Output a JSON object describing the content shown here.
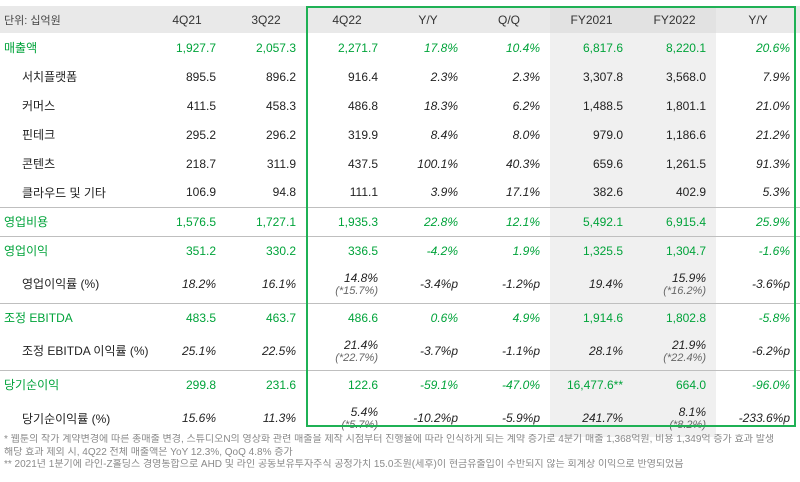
{
  "header": [
    "단위: 십억원",
    "4Q21",
    "3Q22",
    "4Q22",
    "Y/Y",
    "Q/Q",
    "FY2021",
    "FY2022",
    "Y/Y"
  ],
  "rows": [
    {
      "kind": "main",
      "cells": [
        "매출액",
        "1,927.7",
        "2,057.3",
        "2,271.7",
        "17.8%",
        "10.4%",
        "6,817.6",
        "8,220.1",
        "20.6%"
      ]
    },
    {
      "kind": "sub",
      "cells": [
        "서치플랫폼",
        "895.5",
        "896.2",
        "916.4",
        "2.3%",
        "2.3%",
        "3,307.8",
        "3,568.0",
        "7.9%"
      ]
    },
    {
      "kind": "sub",
      "cells": [
        "커머스",
        "411.5",
        "458.3",
        "486.8",
        "18.3%",
        "6.2%",
        "1,488.5",
        "1,801.1",
        "21.0%"
      ]
    },
    {
      "kind": "sub",
      "cells": [
        "핀테크",
        "295.2",
        "296.2",
        "319.9",
        "8.4%",
        "8.0%",
        "979.0",
        "1,186.6",
        "21.2%"
      ]
    },
    {
      "kind": "sub",
      "cells": [
        "콘텐츠",
        "218.7",
        "311.9",
        "437.5",
        "100.1%",
        "40.3%",
        "659.6",
        "1,261.5",
        "91.3%"
      ]
    },
    {
      "kind": "sub",
      "cells": [
        "클라우드 및 기타",
        "106.9",
        "94.8",
        "111.1",
        "3.9%",
        "17.1%",
        "382.6",
        "402.9",
        "5.3%"
      ]
    },
    {
      "kind": "main",
      "cells": [
        "영업비용",
        "1,576.5",
        "1,727.1",
        "1,935.3",
        "22.8%",
        "12.1%",
        "5,492.1",
        "6,915.4",
        "25.9%"
      ]
    },
    {
      "kind": "main",
      "cells": [
        "영업이익",
        "351.2",
        "330.2",
        "336.5",
        "-4.2%",
        "1.9%",
        "1,325.5",
        "1,304.7",
        "-1.6%"
      ]
    },
    {
      "kind": "sub",
      "cells": [
        "영업이익률 (%)",
        "18.2%",
        "16.1%",
        "14.8%",
        "-3.4%p",
        "-1.2%p",
        "19.4%",
        "15.9%",
        "-3.6%p"
      ],
      "notes": {
        "3": "(*15.7%)",
        "7": "(*16.2%)"
      }
    },
    {
      "kind": "main",
      "cells": [
        "조정 EBITDA",
        "483.5",
        "463.7",
        "486.6",
        "0.6%",
        "4.9%",
        "1,914.6",
        "1,802.8",
        "-5.8%"
      ]
    },
    {
      "kind": "sub",
      "cells": [
        "조정 EBITDA 이익률 (%)",
        "25.1%",
        "22.5%",
        "21.4%",
        "-3.7%p",
        "-1.1%p",
        "28.1%",
        "21.9%",
        "-6.2%p"
      ],
      "notes": {
        "3": "(*22.7%)",
        "7": "(*22.4%)"
      }
    },
    {
      "kind": "main",
      "cells": [
        "당기순이익",
        "299.8",
        "231.6",
        "122.6",
        "-59.1%",
        "-47.0%",
        "16,477.6**",
        "664.0",
        "-96.0%"
      ]
    },
    {
      "kind": "sub",
      "cells": [
        "당기순이익률 (%)",
        "15.6%",
        "11.3%",
        "5.4%",
        "-10.2%p",
        "-5.9%p",
        "241.7%",
        "8.1%",
        "-233.6%p"
      ],
      "notes": {
        "3": "(*5.7%)",
        "7": "(*8.2%)"
      }
    }
  ],
  "footnotes": [
    "* 웹툰의 작가 계약변경에 따른 총매출 변경, 스튜디오N의 영상화 관련 매출을 제작 시점부터 진행율에 따라 인식하게 되는 계약 증가로 4분기 매출 1,368억원, 비용 1,349억 증가 효과 발생",
    "   해당 효과 제외 시, 4Q22 전체 매출액은 YoY 12.3%, QoQ 4.8% 증가",
    "** 2021년 1분기에 라인-Z홀딩스 경영통합으로 AHD 및 라인 공동보유투자주식 공정가치 15.0조원(세후)이 현금유출입이 수반되지 않는 회계상 이익으로 반영되었음"
  ],
  "colors": {
    "accent_green": "#00a33a",
    "box_green": "#1fb155",
    "header_bg": "#e9e9e9",
    "shade_bg": "#f0f0f0"
  }
}
